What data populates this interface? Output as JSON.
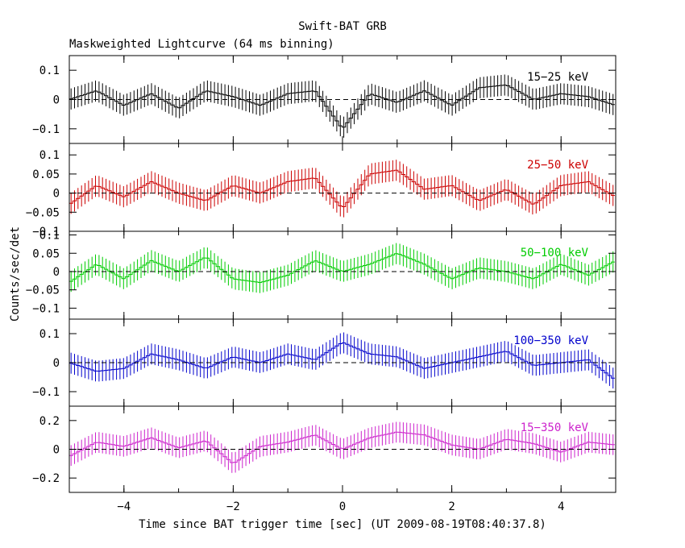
{
  "title": "Swift-BAT GRB",
  "subtitle": "Maskweighted Lightcurve (64 ms binning)",
  "ylabel": "Counts/sec/det",
  "xlabel": "Time since BAT trigger time [sec] (UT 2009-08-19T08:40:37.8)",
  "chart_data": {
    "type": "line",
    "title": "Swift-BAT GRB",
    "subtitle": "Maskweighted Lightcurve (64 ms binning)",
    "xlabel": "Time since BAT trigger time [sec] (UT 2009-08-19T08:40:37.8)",
    "ylabel": "Counts/sec/det",
    "xlim": [
      -5,
      5
    ],
    "x_ticks": [
      -4,
      -2,
      0,
      2,
      4
    ],
    "x_tick_labels": [
      "−4",
      "−2",
      "0",
      "2",
      "4"
    ],
    "bin_width_sec": 0.064,
    "zero_line": "dashed",
    "panels": [
      {
        "name": "15−25 keV",
        "color": "#000000",
        "ylim": [
          -0.15,
          0.15
        ],
        "y_ticks": [
          -0.1,
          0,
          0.1
        ],
        "y_tick_labels": [
          "−0.1",
          "0",
          "0.1"
        ],
        "x": [
          -5.0,
          -4.5,
          -4.0,
          -3.5,
          -3.0,
          -2.5,
          -2.0,
          -1.5,
          -1.0,
          -0.5,
          0.0,
          0.5,
          1.0,
          1.5,
          2.0,
          2.5,
          3.0,
          3.5,
          4.0,
          4.5,
          5.0
        ],
        "values": [
          0.0,
          0.03,
          -0.02,
          0.02,
          -0.03,
          0.03,
          0.01,
          -0.02,
          0.02,
          0.03,
          -0.1,
          0.02,
          -0.01,
          0.03,
          -0.02,
          0.04,
          0.05,
          0.0,
          0.02,
          0.01,
          -0.02
        ]
      },
      {
        "name": "25−50 keV",
        "color": "#cc0000",
        "ylim": [
          -0.1,
          0.13
        ],
        "y_ticks": [
          -0.1,
          -0.05,
          0,
          0.05,
          0.1
        ],
        "y_tick_labels": [
          "−0.1",
          "−0.05",
          "0",
          "0.05",
          "0.1"
        ],
        "x": [
          -5.0,
          -4.5,
          -4.0,
          -3.5,
          -3.0,
          -2.5,
          -2.0,
          -1.5,
          -1.0,
          -0.5,
          0.0,
          0.5,
          1.0,
          1.5,
          2.0,
          2.5,
          3.0,
          3.5,
          4.0,
          4.5,
          5.0
        ],
        "values": [
          -0.03,
          0.02,
          -0.01,
          0.03,
          0.0,
          -0.02,
          0.02,
          0.0,
          0.03,
          0.04,
          -0.04,
          0.05,
          0.06,
          0.01,
          0.02,
          -0.02,
          0.01,
          -0.03,
          0.02,
          0.03,
          -0.01
        ]
      },
      {
        "name": "50−100 keV",
        "color": "#00cc00",
        "ylim": [
          -0.13,
          0.11
        ],
        "y_ticks": [
          -0.1,
          -0.05,
          0,
          0.05,
          0.1
        ],
        "y_tick_labels": [
          "−0.1",
          "−0.05",
          "0",
          "0.05",
          "0.1"
        ],
        "x": [
          -5.0,
          -4.5,
          -4.0,
          -3.5,
          -3.0,
          -2.5,
          -2.0,
          -1.5,
          -1.0,
          -0.5,
          0.0,
          0.5,
          1.0,
          1.5,
          2.0,
          2.5,
          3.0,
          3.5,
          4.0,
          4.5,
          5.0
        ],
        "values": [
          -0.03,
          0.02,
          -0.02,
          0.03,
          0.0,
          0.04,
          -0.02,
          -0.03,
          -0.01,
          0.03,
          0.0,
          0.02,
          0.05,
          0.02,
          -0.02,
          0.01,
          0.0,
          -0.02,
          0.02,
          -0.01,
          0.03
        ]
      },
      {
        "name": "100−350 keV",
        "color": "#0000cc",
        "ylim": [
          -0.15,
          0.15
        ],
        "y_ticks": [
          -0.1,
          0,
          0.1
        ],
        "y_tick_labels": [
          "−0.1",
          "0",
          "0.1"
        ],
        "x": [
          -5.0,
          -4.5,
          -4.0,
          -3.5,
          -3.0,
          -2.5,
          -2.0,
          -1.5,
          -1.0,
          -0.5,
          0.0,
          0.5,
          1.0,
          1.5,
          2.0,
          2.5,
          3.0,
          3.5,
          4.0,
          4.5,
          5.0
        ],
        "values": [
          0.0,
          -0.03,
          -0.02,
          0.03,
          0.01,
          -0.02,
          0.02,
          0.0,
          0.03,
          0.01,
          0.07,
          0.03,
          0.02,
          -0.02,
          0.0,
          0.02,
          0.04,
          -0.01,
          0.0,
          0.01,
          -0.06
        ]
      },
      {
        "name": "15−350 keV",
        "color": "#cc22cc",
        "ylim": [
          -0.3,
          0.3
        ],
        "y_ticks": [
          -0.2,
          0,
          0.2
        ],
        "y_tick_labels": [
          "−0.2",
          "0",
          "0.2"
        ],
        "x": [
          -5.0,
          -4.5,
          -4.0,
          -3.5,
          -3.0,
          -2.5,
          -2.0,
          -1.5,
          -1.0,
          -0.5,
          0.0,
          0.5,
          1.0,
          1.5,
          2.0,
          2.5,
          3.0,
          3.5,
          4.0,
          4.5,
          5.0
        ],
        "values": [
          -0.05,
          0.05,
          0.02,
          0.08,
          0.01,
          0.06,
          -0.1,
          0.02,
          0.05,
          0.1,
          0.0,
          0.08,
          0.12,
          0.1,
          0.03,
          0.0,
          0.07,
          0.04,
          -0.02,
          0.05,
          0.03
        ]
      }
    ]
  }
}
